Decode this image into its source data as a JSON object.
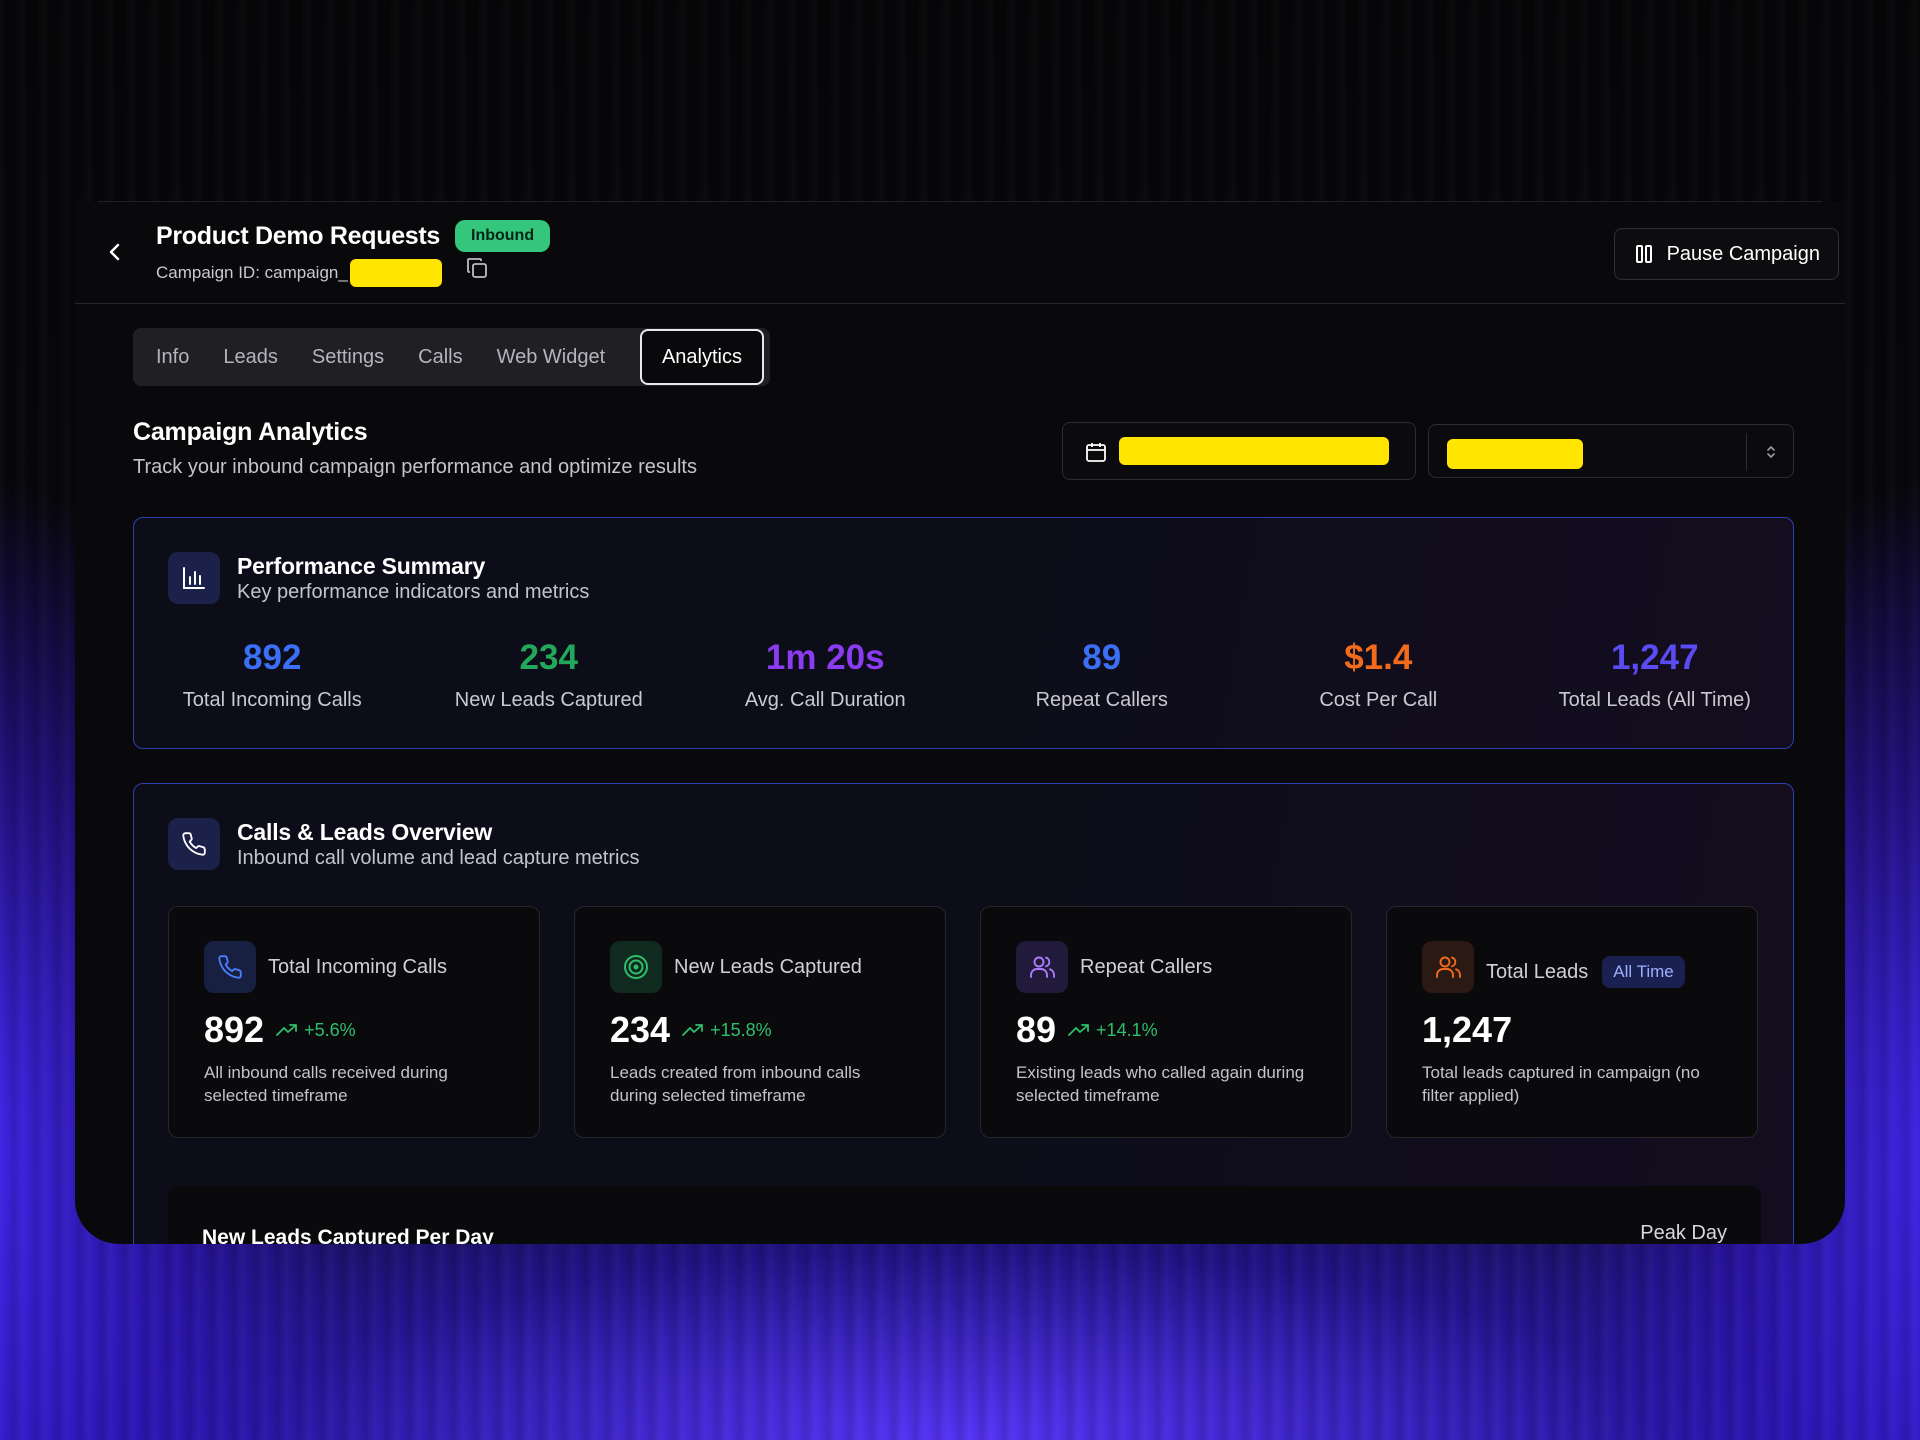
{
  "header": {
    "title": "Product Demo Requests",
    "badge": "Inbound",
    "campaign_id_prefix": "Campaign ID: campaign_",
    "pause_label": "Pause Campaign"
  },
  "tabs": [
    "Info",
    "Leads",
    "Settings",
    "Calls",
    "Web Widget",
    "Analytics"
  ],
  "analytics": {
    "title": "Campaign Analytics",
    "subtitle": "Track your inbound campaign performance and optimize results"
  },
  "performance": {
    "title": "Performance Summary",
    "subtitle": "Key performance indicators and metrics",
    "kpis": [
      {
        "value": "892",
        "label": "Total Incoming Calls",
        "color": "#3b6ff5"
      },
      {
        "value": "234",
        "label": "New Leads Captured",
        "color": "#22a85a"
      },
      {
        "value": "1m 20s",
        "label": "Avg. Call Duration",
        "color": "#8a3cf0"
      },
      {
        "value": "89",
        "label": "Repeat Callers",
        "color": "#3b6ff5"
      },
      {
        "value": "$1.4",
        "label": "Cost Per Call",
        "color": "#f26a1b"
      },
      {
        "value": "1,247",
        "label": "Total Leads (All Time)",
        "color": "#5a4cf2"
      }
    ]
  },
  "overview": {
    "title": "Calls & Leads Overview",
    "subtitle": "Inbound call volume and lead capture metrics",
    "stats": [
      {
        "name": "Total Incoming Calls",
        "value": "892",
        "trend": "+5.6%",
        "desc": "All inbound calls received during selected timeframe",
        "icon": "phone-icon"
      },
      {
        "name": "New Leads Captured",
        "value": "234",
        "trend": "+15.8%",
        "desc": "Leads created from inbound calls during selected timeframe",
        "icon": "target-icon"
      },
      {
        "name": "Repeat Callers",
        "value": "89",
        "trend": "+14.1%",
        "desc": "Existing leads who called again during selected timeframe",
        "icon": "users-icon"
      },
      {
        "name": "Total Leads",
        "badge": "All Time",
        "value": "1,247",
        "desc": "Total leads captured in campaign (no filter applied)",
        "icon": "users-icon"
      }
    ],
    "chart_title": "New Leads Captured Per Day",
    "peak_label": "Peak Day"
  }
}
